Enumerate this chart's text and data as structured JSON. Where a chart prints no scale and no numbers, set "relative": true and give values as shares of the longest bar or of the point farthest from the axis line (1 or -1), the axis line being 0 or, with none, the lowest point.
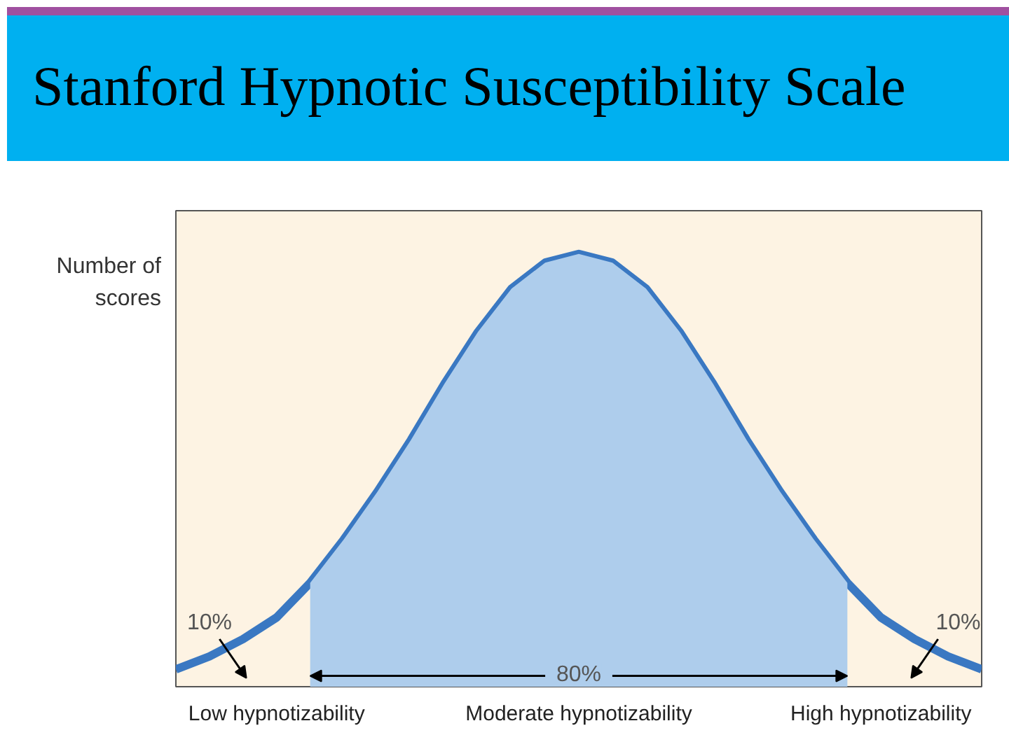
{
  "chart_data": {
    "type": "area",
    "title": "Stanford Hypnotic Susceptibility Scale",
    "ylabel": "Number of scores",
    "relative": true,
    "grid": false,
    "categories": [
      null,
      null,
      null,
      "Low hypnotizability",
      null,
      null,
      null,
      null,
      null,
      null,
      null,
      null,
      "Moderate hypnotizability",
      null,
      null,
      null,
      null,
      null,
      null,
      null,
      null,
      "High hypnotizability",
      null,
      null,
      null
    ],
    "series": [
      {
        "type": "line",
        "color": "#3a78c2",
        "values": [
          0.04,
          0.07,
          0.11,
          0.16,
          0.24,
          0.34,
          0.45,
          0.57,
          0.7,
          0.82,
          0.92,
          0.98,
          1.0,
          0.98,
          0.92,
          0.82,
          0.7,
          0.57,
          0.45,
          0.34,
          0.24,
          0.16,
          0.11,
          0.07,
          0.04
        ]
      },
      {
        "color": "#aecdec",
        "values": [
          null,
          null,
          null,
          null,
          0.24,
          0.34,
          0.45,
          0.57,
          0.7,
          0.82,
          0.92,
          0.98,
          1.0,
          0.98,
          0.92,
          0.82,
          0.7,
          0.57,
          0.45,
          0.34,
          0.24,
          null,
          null,
          null,
          null
        ]
      }
    ],
    "annotations": [
      "10%",
      "80%",
      "10%"
    ]
  }
}
